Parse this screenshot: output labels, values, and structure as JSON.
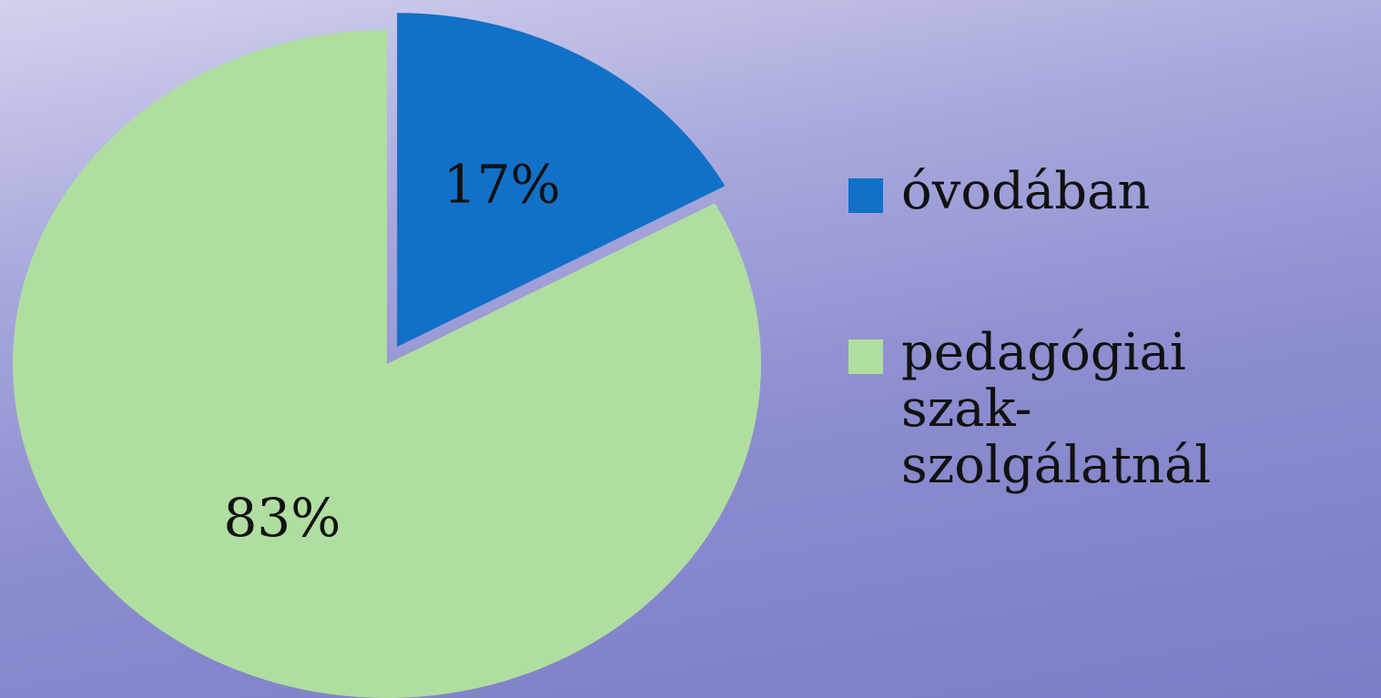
{
  "chart_data": {
    "type": "pie",
    "categories": [
      "óvodában",
      "pedagógiai szak-szolgálatnál"
    ],
    "values": [
      17,
      83
    ],
    "value_labels": [
      "17%",
      "83%"
    ],
    "colors": [
      "#1170c8",
      "#b0dea0"
    ],
    "legend": "right"
  }
}
